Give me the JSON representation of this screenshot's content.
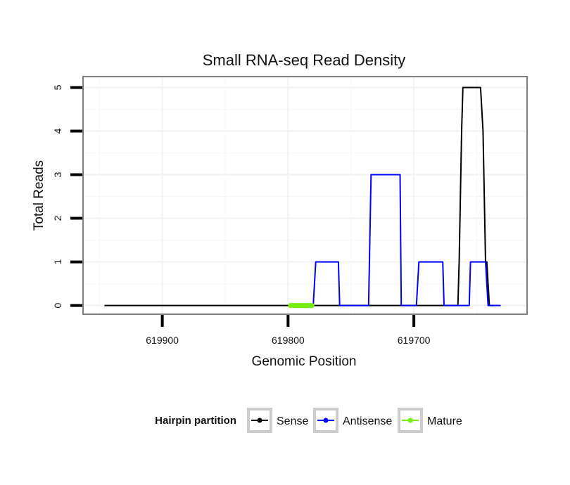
{
  "chart_data": {
    "type": "line",
    "title": "Small RNA-seq Read Density",
    "xlabel": "Genomic Position",
    "ylabel": "Total Reads",
    "x_reversed": true,
    "xlim": [
      619963,
      619610
    ],
    "ylim": [
      -0.2,
      5.25
    ],
    "x_ticks": [
      619900,
      619800,
      619700
    ],
    "x_tick_labels": [
      "619900",
      "619800",
      "619700"
    ],
    "y_ticks": [
      0,
      1,
      2,
      3,
      4,
      5
    ],
    "y_tick_labels": [
      "0",
      "1",
      "2",
      "3",
      "4",
      "5"
    ],
    "grid": true,
    "series": [
      {
        "name": "Sense",
        "color": "#000000",
        "x": [
          619946,
          619665,
          619664,
          619662,
          619661,
          619647,
          619645,
          619643,
          619642,
          619640,
          619636
        ],
        "y": [
          0,
          0,
          1,
          4,
          5,
          5,
          4,
          1,
          1,
          0,
          0
        ]
      },
      {
        "name": "Antisense",
        "color": "#0000ff",
        "x": [
          619780,
          619778,
          619760,
          619759,
          619736,
          619734,
          619711,
          619710,
          619698,
          619696,
          619677,
          619676,
          619656,
          619655,
          619643,
          619641,
          619631
        ],
        "y": [
          0,
          1,
          1,
          0,
          0,
          3,
          3,
          0,
          0,
          1,
          1,
          0,
          0,
          1,
          1,
          0,
          0
        ]
      },
      {
        "name": "Mature",
        "color": "#77ee11",
        "x": [
          619798,
          619781
        ],
        "y": [
          0,
          0
        ]
      }
    ],
    "legend": {
      "title": "Hairpin partition",
      "position": "bottom",
      "entries": [
        "Sense",
        "Antisense",
        "Mature"
      ]
    }
  }
}
